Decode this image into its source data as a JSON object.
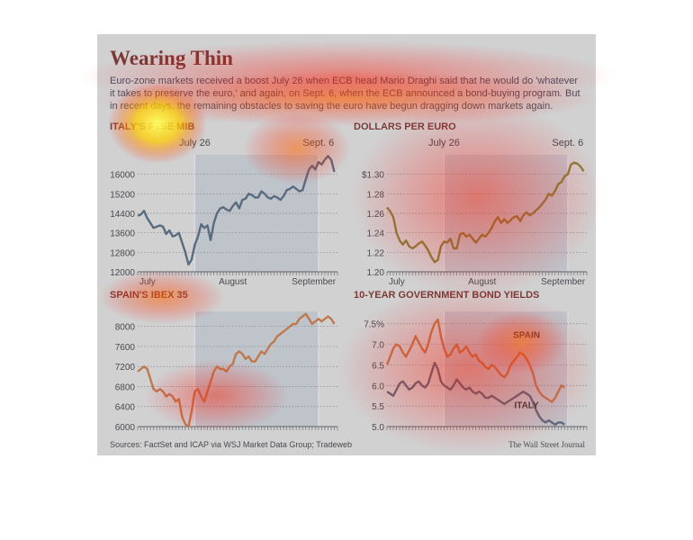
{
  "title": "Wearing Thin",
  "dek": "Euro-zone markets received a boost July 26 when ECB head Mario Draghi said that he would do 'whatever it takes to preserve the euro,' and again, on Sept. 6, when the ECB announced a bond-buying program. But in recent days, the remaining obstacles to saving the euro have begun dragging down markets again.",
  "source": "Sources: FactSet and ICAP via WSJ Market Data Group; Tradeweb",
  "credit": "The Wall Street Journal",
  "colors": {
    "line_blue": "#4c6177",
    "line_gold": "#8f7d18",
    "line_orange": "#d87532",
    "heading": "#7a1c10",
    "shade": "#d2d6db"
  },
  "chart_data": [
    {
      "id": "italy",
      "type": "line",
      "title": "ITALY'S FTSE MIB",
      "event_labels": [
        "July 26",
        "Sept. 6"
      ],
      "event_x": [
        18,
        57
      ],
      "x_tick_labels": [
        "July",
        "August",
        "September"
      ],
      "x_tick_pos": [
        0,
        25,
        48
      ],
      "ylim": [
        12000,
        16800
      ],
      "y_ticks": [
        12000,
        12800,
        13600,
        14400,
        15200,
        16000
      ],
      "y_tick_labels": [
        "12000",
        "12800",
        "13600",
        "14400",
        "15200",
        "16000"
      ],
      "x_range": [
        0,
        63
      ],
      "color": "#4c6177",
      "series": [
        {
          "values": [
            14300,
            14350,
            14500,
            14200,
            14000,
            13800,
            13850,
            13900,
            13850,
            13550,
            13700,
            13450,
            13500,
            13600,
            13200,
            12800,
            12300,
            12500,
            13100,
            13450,
            13950,
            13800,
            13900,
            13300,
            14000,
            14400,
            14600,
            14650,
            14550,
            14500,
            14700,
            14850,
            14600,
            14950,
            15000,
            15200,
            15150,
            15050,
            15050,
            15300,
            15200,
            15050,
            15000,
            15100,
            15050,
            14950,
            15100,
            15350,
            15400,
            15500,
            15400,
            15300,
            15350,
            15800,
            16200,
            16350,
            16200,
            16500,
            16400,
            16600,
            16750,
            16600,
            16100
          ]
        }
      ]
    },
    {
      "id": "dollars",
      "type": "line",
      "title": "DOLLARS PER EURO",
      "event_labels": [
        "July 26",
        "Sept. 6"
      ],
      "event_x": [
        18,
        57
      ],
      "x_tick_labels": [
        "July",
        "August",
        "September"
      ],
      "x_tick_pos": [
        0,
        25,
        48
      ],
      "ylim": [
        1.2,
        1.32
      ],
      "y_ticks": [
        1.2,
        1.22,
        1.24,
        1.26,
        1.28,
        1.3
      ],
      "y_tick_labels": [
        "1.20",
        "1.22",
        "1.24",
        "1.26",
        "1.28",
        "$1.30"
      ],
      "x_range": [
        0,
        63
      ],
      "color": "#8f7d18",
      "series": [
        {
          "values": [
            1.266,
            1.262,
            1.256,
            1.24,
            1.232,
            1.228,
            1.232,
            1.226,
            1.224,
            1.226,
            1.229,
            1.231,
            1.227,
            1.222,
            1.215,
            1.21,
            1.212,
            1.226,
            1.231,
            1.23,
            1.234,
            1.224,
            1.224,
            1.238,
            1.24,
            1.236,
            1.238,
            1.234,
            1.23,
            1.234,
            1.238,
            1.236,
            1.24,
            1.245,
            1.252,
            1.256,
            1.25,
            1.254,
            1.25,
            1.253,
            1.256,
            1.257,
            1.252,
            1.258,
            1.261,
            1.258,
            1.26,
            1.263,
            1.266,
            1.27,
            1.274,
            1.28,
            1.278,
            1.283,
            1.29,
            1.292,
            1.298,
            1.3,
            1.31,
            1.312,
            1.311,
            1.308,
            1.303
          ]
        }
      ]
    },
    {
      "id": "spain",
      "type": "line",
      "title": "SPAIN'S IBEX 35",
      "event_labels": [],
      "event_x": [
        18,
        57
      ],
      "x_tick_labels": [],
      "x_tick_pos": [],
      "ylim": [
        6000,
        8300
      ],
      "y_ticks": [
        6000,
        6400,
        6800,
        7200,
        7600,
        8000
      ],
      "y_tick_labels": [
        "6000",
        "6400",
        "6800",
        "7200",
        "7600",
        "8000"
      ],
      "x_range": [
        0,
        63
      ],
      "color": "#d87532",
      "series": [
        {
          "values": [
            7100,
            7150,
            7200,
            7150,
            6950,
            6750,
            6700,
            6750,
            6700,
            6600,
            6650,
            6600,
            6500,
            6550,
            6200,
            6050,
            6000,
            6300,
            6700,
            6750,
            6600,
            6500,
            6700,
            6900,
            7100,
            7200,
            7150,
            7150,
            7100,
            7200,
            7250,
            7450,
            7500,
            7450,
            7350,
            7400,
            7300,
            7300,
            7400,
            7500,
            7450,
            7550,
            7650,
            7700,
            7800,
            7850,
            7900,
            7950,
            8000,
            8050,
            8050,
            8150,
            8200,
            8250,
            8150,
            8050,
            8100,
            8150,
            8100,
            8150,
            8200,
            8150,
            8050
          ]
        }
      ]
    },
    {
      "id": "yields",
      "type": "line",
      "title": "10-YEAR GOVERNMENT BOND YIELDS",
      "event_labels": [],
      "event_x": [
        18,
        57
      ],
      "x_tick_labels": [],
      "x_tick_pos": [],
      "ylim": [
        5.0,
        7.8
      ],
      "y_ticks": [
        5.0,
        5.5,
        6.0,
        6.5,
        7.0,
        7.5
      ],
      "y_tick_labels": [
        "5.0",
        "5.5",
        "6.0",
        "6.5",
        "7.0",
        "7.5%"
      ],
      "x_range": [
        0,
        63
      ],
      "series": [
        {
          "name": "SPAIN",
          "color": "#d87532",
          "label_x": 44,
          "label_y": 7.15,
          "values": [
            6.5,
            6.7,
            6.9,
            7.0,
            6.95,
            6.8,
            6.7,
            6.85,
            7.0,
            7.2,
            7.05,
            6.9,
            6.8,
            7.0,
            7.3,
            7.5,
            7.6,
            7.2,
            6.9,
            6.7,
            6.75,
            6.9,
            7.0,
            6.8,
            6.85,
            6.95,
            6.8,
            6.7,
            6.75,
            6.6,
            6.55,
            6.45,
            6.4,
            6.5,
            6.45,
            6.35,
            6.25,
            6.2,
            6.3,
            6.5,
            6.6,
            6.7,
            6.8,
            6.75,
            6.65,
            6.5,
            6.3,
            6.0,
            5.85,
            5.75,
            5.7,
            5.65,
            5.6,
            5.7,
            5.85,
            6.0,
            5.95
          ]
        },
        {
          "name": "ITALY",
          "color": "#4c6177",
          "label_x": 44,
          "label_y": 5.45,
          "values": [
            5.85,
            5.8,
            5.75,
            5.9,
            6.05,
            6.1,
            6.0,
            5.9,
            5.95,
            6.05,
            6.1,
            6.0,
            5.95,
            6.05,
            6.3,
            6.55,
            6.4,
            6.1,
            6.0,
            5.95,
            5.9,
            6.0,
            6.15,
            6.05,
            5.95,
            5.9,
            5.95,
            5.85,
            5.8,
            5.85,
            5.8,
            5.7,
            5.7,
            5.75,
            5.7,
            5.65,
            5.6,
            5.55,
            5.6,
            5.65,
            5.7,
            5.75,
            5.8,
            5.85,
            5.8,
            5.75,
            5.6,
            5.4,
            5.25,
            5.15,
            5.1,
            5.15,
            5.1,
            5.05,
            5.1,
            5.1,
            5.05
          ]
        }
      ]
    }
  ]
}
